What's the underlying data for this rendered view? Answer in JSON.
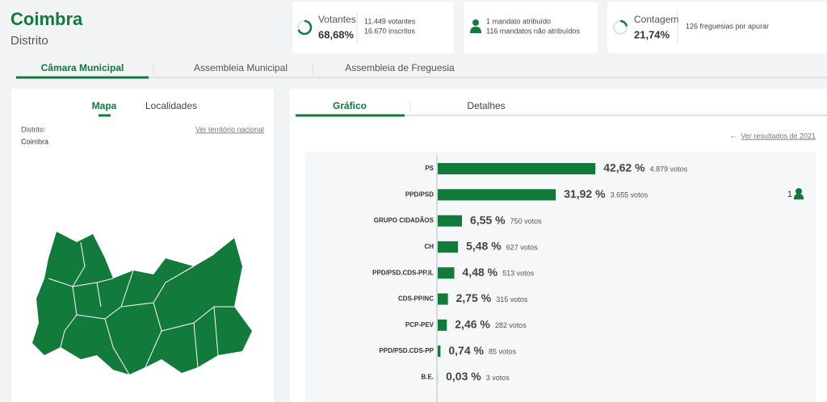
{
  "header": {
    "title": "Coimbra",
    "subtitle": "Distrito"
  },
  "stats": [
    {
      "label": "Votantes",
      "value": 68.68,
      "value_label": "68,68%",
      "lines": [
        "11.449 votantes",
        "16.670 inscritos"
      ]
    },
    {
      "lines": [
        "1 mandato atribuído",
        "116 mandatos não atribuídos"
      ]
    },
    {
      "label": "Contagem",
      "value": 21.74,
      "value_label": "21,74%",
      "lines": [
        "126 freguesias por apurar"
      ]
    }
  ],
  "tabs": [
    "Câmara Municipal",
    "Assembleia Municipal",
    "Assembleia de Freguesia"
  ],
  "map_panel": {
    "tabs": [
      "Mapa",
      "Localidades"
    ],
    "district_label": "Distrito:",
    "district": "Coimbra",
    "link": "Ver território nacional"
  },
  "results_tabs": [
    "Gráfico",
    "Detalhes"
  ],
  "previous_link": "Ver resultados de 2021",
  "chart_data": {
    "type": "bar",
    "orientation": "horizontal",
    "color": "#127a3a",
    "categories": [
      "PS",
      "PPD/PSD",
      "GRUPO CIDADÃOS",
      "CH",
      "PPD/PSD.CDS-PP.IL",
      "CDS-PP/NC",
      "PCP-PEV",
      "PPD/PSD.CDS-PP",
      "B.E."
    ],
    "values": [
      42.62,
      31.92,
      6.55,
      5.48,
      4.48,
      2.75,
      2.46,
      0.74,
      0.03
    ],
    "value_labels": [
      "42,62 %",
      "31,92 %",
      "6,55 %",
      "5,48 %",
      "4,48 %",
      "2,75 %",
      "2,46 %",
      "0,74 %",
      "0,03 %"
    ],
    "votes": [
      "4.879 votos",
      "3.655 votos",
      "750 votos",
      "627 votos",
      "513 votos",
      "315 votos",
      "282 votos",
      "85 votos",
      "3 votos"
    ],
    "mandates": [
      null,
      1,
      null,
      null,
      null,
      null,
      null,
      null,
      null
    ]
  }
}
